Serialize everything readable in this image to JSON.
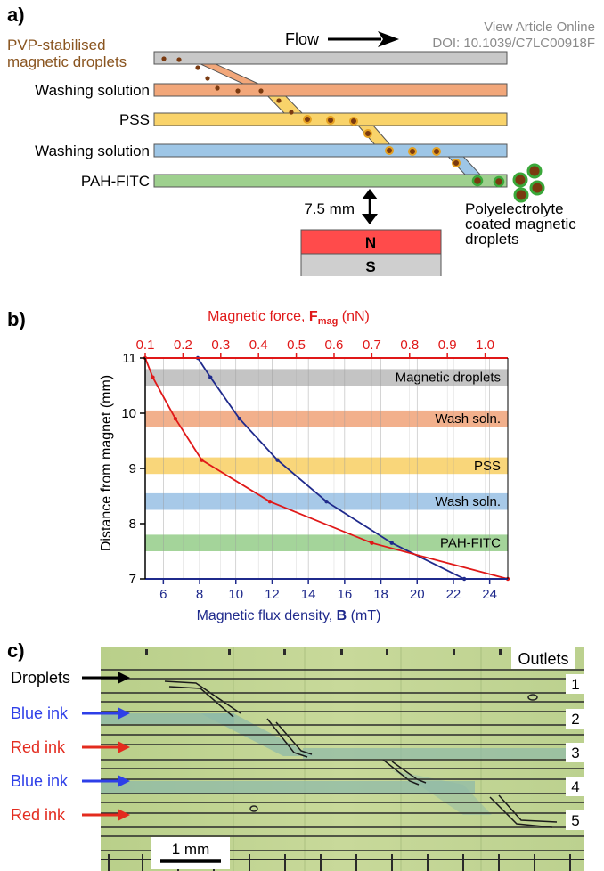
{
  "watermark": {
    "line1": "View Article Online",
    "line2": "DOI: 10.1039/C7LC00918F"
  },
  "panel_a": {
    "label": "a)",
    "flow_label": "Flow",
    "inlet_title_line1": "PVP-stabilised",
    "inlet_title_line2": "magnetic droplets",
    "channels": [
      {
        "label": "",
        "color": "#c8c8c8"
      },
      {
        "label": "Washing solution",
        "color": "#f2a77a"
      },
      {
        "label": "PSS",
        "color": "#f9d36a"
      },
      {
        "label": "Washing solution",
        "color": "#9ec6e6"
      },
      {
        "label": "PAH-FITC",
        "color": "#9ed08e"
      }
    ],
    "distance_label": "7.5 mm",
    "magnet_north": "N",
    "magnet_south": "S",
    "magnet_north_color": "#ff4b4b",
    "magnet_south_color": "#cfcfcf",
    "output_line1": "Polyelectrolyte",
    "output_line2": "coated magnetic",
    "output_line3": "droplets"
  },
  "panel_b": {
    "label": "b)",
    "chart_data": {
      "type": "line",
      "xlabel_bottom_prefix": "Magnetic flux density, ",
      "xlabel_bottom_symbol": "B",
      "xlabel_bottom_unit": " (mT)",
      "xlabel_top_prefix": "Magnetic force, ",
      "xlabel_top_symbol": "F",
      "xlabel_top_sub": "mag",
      "xlabel_top_unit": " (nN)",
      "ylabel": "Distance from magnet (mm)",
      "xlim_bottom": [
        5,
        25
      ],
      "xlim_top": [
        0.1,
        1.06
      ],
      "ylim": [
        7,
        11
      ],
      "bottom_ticks": [
        "6",
        "8",
        "10",
        "12",
        "14",
        "16",
        "18",
        "20",
        "22",
        "24"
      ],
      "top_ticks": [
        "0.1",
        "0.2",
        "0.3",
        "0.4",
        "0.5",
        "0.6",
        "0.7",
        "0.8",
        "0.9",
        "1.0"
      ],
      "y_ticks": [
        "7",
        "8",
        "9",
        "10",
        "11"
      ],
      "bands": [
        {
          "label": "Magnetic droplets",
          "y": [
            10.5,
            10.8
          ],
          "color": "#c4c4c4"
        },
        {
          "label": "Wash soln.",
          "y": [
            9.75,
            10.05
          ],
          "color": "#f2b08c"
        },
        {
          "label": "PSS",
          "y": [
            8.9,
            9.2
          ],
          "color": "#f9d67a"
        },
        {
          "label": "Wash soln.",
          "y": [
            8.25,
            8.55
          ],
          "color": "#a7c9e8"
        },
        {
          "label": "PAH-FITC",
          "y": [
            7.5,
            7.8
          ],
          "color": "#a4d49a"
        }
      ],
      "series": [
        {
          "axis": "bottom",
          "color": "#1f2a8c",
          "x": [
            7.9,
            8.6,
            10.2,
            12.3,
            15.0,
            18.6,
            22.6
          ],
          "y": [
            11.0,
            10.65,
            9.9,
            9.15,
            8.4,
            7.65,
            7.0
          ]
        },
        {
          "axis": "top",
          "color": "#e01818",
          "x": [
            0.1,
            0.12,
            0.18,
            0.25,
            0.43,
            0.7,
            1.06
          ],
          "y": [
            11.0,
            10.65,
            9.9,
            9.15,
            8.4,
            7.65,
            7.0
          ]
        }
      ]
    }
  },
  "panel_c": {
    "label": "c)",
    "outlets_label": "Outlets",
    "inlets": [
      {
        "label": "Droplets",
        "color": "#000000"
      },
      {
        "label": "Blue ink",
        "color": "#2e3fe8"
      },
      {
        "label": "Red ink",
        "color": "#e32b1e"
      },
      {
        "label": "Blue ink",
        "color": "#2e3fe8"
      },
      {
        "label": "Red ink",
        "color": "#e32b1e"
      }
    ],
    "outlets": [
      "1",
      "2",
      "3",
      "4",
      "5"
    ],
    "scale_label": "1 mm"
  }
}
